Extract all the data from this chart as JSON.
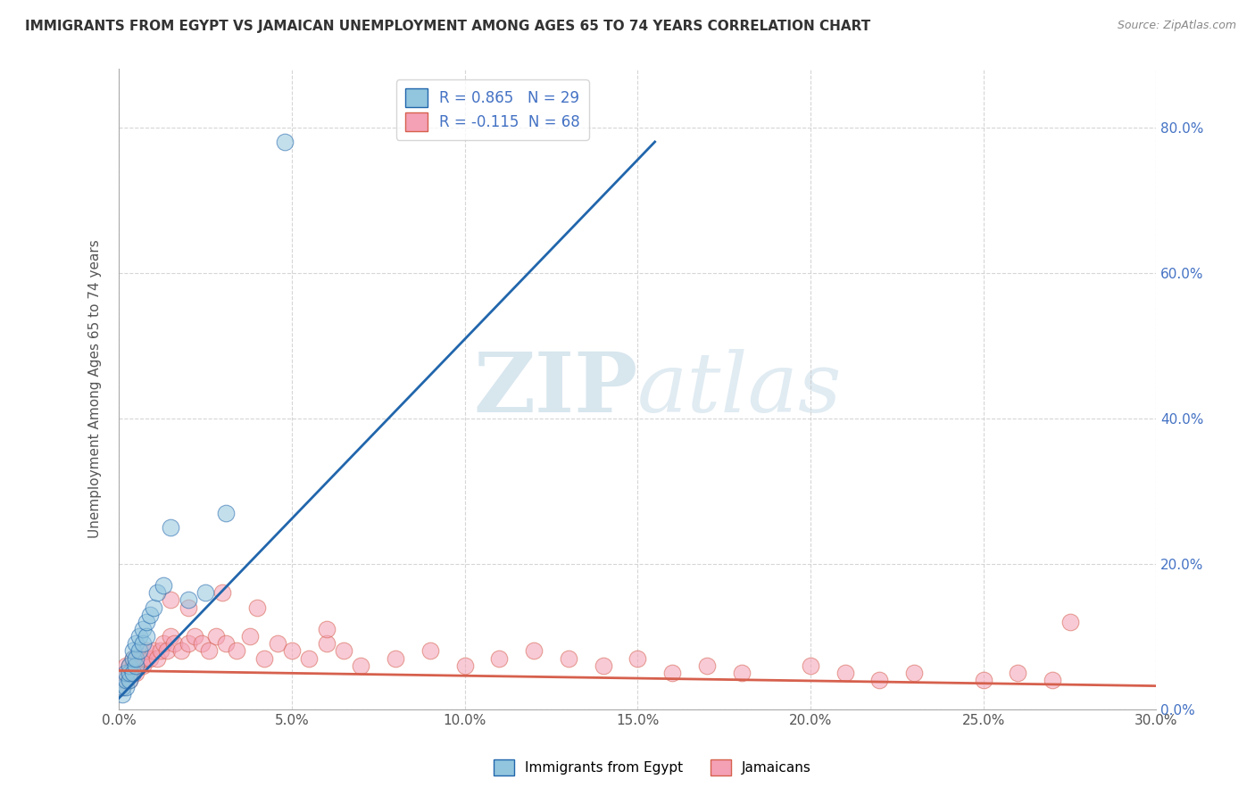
{
  "title": "IMMIGRANTS FROM EGYPT VS JAMAICAN UNEMPLOYMENT AMONG AGES 65 TO 74 YEARS CORRELATION CHART",
  "source": "Source: ZipAtlas.com",
  "ylabel": "Unemployment Among Ages 65 to 74 years",
  "xmin": 0.0,
  "xmax": 0.3,
  "ymin": 0.0,
  "ymax": 0.88,
  "yticks": [
    0.0,
    0.2,
    0.4,
    0.6,
    0.8
  ],
  "right_ytick_labels": [
    "0.0%",
    "20.0%",
    "40.0%",
    "60.0%",
    "80.0%"
  ],
  "xtick_vals": [
    0.0,
    0.05,
    0.1,
    0.15,
    0.2,
    0.25,
    0.3
  ],
  "xtick_labels": [
    "0.0%",
    "5.0%",
    "10.0%",
    "15.0%",
    "20.0%",
    "25.0%",
    "30.0%"
  ],
  "blue_R": 0.865,
  "blue_N": 29,
  "pink_R": -0.115,
  "pink_N": 68,
  "blue_color": "#92c5de",
  "pink_color": "#f4a0b5",
  "blue_line_color": "#2166ac",
  "pink_line_color": "#d6604d",
  "legend_label_blue": "Immigrants from Egypt",
  "legend_label_pink": "Jamaicans",
  "watermark_zip": "ZIP",
  "watermark_atlas": "atlas",
  "blue_trend_x0": 0.0,
  "blue_trend_y0": 0.015,
  "blue_trend_x1": 0.155,
  "blue_trend_y1": 0.78,
  "pink_trend_x0": 0.0,
  "pink_trend_y0": 0.053,
  "pink_trend_x1": 0.3,
  "pink_trend_y1": 0.032,
  "blue_scatter_x": [
    0.001,
    0.001,
    0.002,
    0.002,
    0.002,
    0.003,
    0.003,
    0.003,
    0.004,
    0.004,
    0.004,
    0.005,
    0.005,
    0.005,
    0.006,
    0.006,
    0.007,
    0.007,
    0.008,
    0.008,
    0.009,
    0.01,
    0.011,
    0.013,
    0.015,
    0.02,
    0.025,
    0.031,
    0.048
  ],
  "blue_scatter_y": [
    0.02,
    0.03,
    0.03,
    0.04,
    0.05,
    0.04,
    0.05,
    0.06,
    0.05,
    0.07,
    0.08,
    0.06,
    0.07,
    0.09,
    0.08,
    0.1,
    0.09,
    0.11,
    0.1,
    0.12,
    0.13,
    0.14,
    0.16,
    0.17,
    0.25,
    0.15,
    0.16,
    0.27,
    0.78
  ],
  "pink_scatter_x": [
    0.001,
    0.001,
    0.002,
    0.002,
    0.002,
    0.003,
    0.003,
    0.003,
    0.004,
    0.004,
    0.004,
    0.005,
    0.005,
    0.005,
    0.006,
    0.006,
    0.007,
    0.007,
    0.008,
    0.008,
    0.009,
    0.01,
    0.011,
    0.012,
    0.013,
    0.014,
    0.015,
    0.016,
    0.018,
    0.02,
    0.022,
    0.024,
    0.026,
    0.028,
    0.031,
    0.034,
    0.038,
    0.042,
    0.046,
    0.05,
    0.055,
    0.06,
    0.065,
    0.07,
    0.08,
    0.09,
    0.1,
    0.11,
    0.12,
    0.13,
    0.14,
    0.15,
    0.16,
    0.17,
    0.18,
    0.2,
    0.21,
    0.22,
    0.23,
    0.25,
    0.26,
    0.27,
    0.015,
    0.02,
    0.03,
    0.04,
    0.06,
    0.275
  ],
  "pink_scatter_y": [
    0.03,
    0.04,
    0.04,
    0.05,
    0.06,
    0.04,
    0.05,
    0.06,
    0.05,
    0.06,
    0.07,
    0.05,
    0.06,
    0.07,
    0.06,
    0.07,
    0.06,
    0.07,
    0.07,
    0.08,
    0.07,
    0.08,
    0.07,
    0.08,
    0.09,
    0.08,
    0.1,
    0.09,
    0.08,
    0.09,
    0.1,
    0.09,
    0.08,
    0.1,
    0.09,
    0.08,
    0.1,
    0.07,
    0.09,
    0.08,
    0.07,
    0.09,
    0.08,
    0.06,
    0.07,
    0.08,
    0.06,
    0.07,
    0.08,
    0.07,
    0.06,
    0.07,
    0.05,
    0.06,
    0.05,
    0.06,
    0.05,
    0.04,
    0.05,
    0.04,
    0.05,
    0.04,
    0.15,
    0.14,
    0.16,
    0.14,
    0.11,
    0.12
  ]
}
